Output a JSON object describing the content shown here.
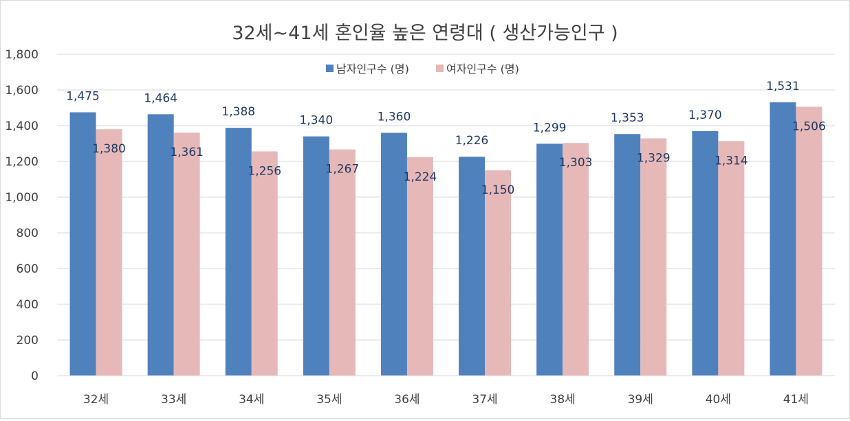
{
  "chart_data": {
    "type": "bar",
    "title": "32세~41세 혼인율 높은 연령대 ( 생산가능인구 )",
    "categories": [
      "32세",
      "33세",
      "34세",
      "35세",
      "36세",
      "37세",
      "38세",
      "39세",
      "40세",
      "41세"
    ],
    "series": [
      {
        "name": "남자인구수 (명)",
        "color": "#4f81bd",
        "values": [
          1475,
          1464,
          1388,
          1340,
          1360,
          1226,
          1299,
          1353,
          1370,
          1531
        ],
        "labels": [
          "1,475",
          "1,464",
          "1,388",
          "1,340",
          "1,360",
          "1,226",
          "1,299",
          "1,353",
          "1,370",
          "1,531"
        ]
      },
      {
        "name": "여자인구수 (명)",
        "color": "#e6b9b8",
        "values": [
          1380,
          1361,
          1256,
          1267,
          1224,
          1150,
          1303,
          1329,
          1314,
          1506
        ],
        "labels": [
          "1,380",
          "1,361",
          "1,256",
          "1,267",
          "1,224",
          "1,150",
          "1,303",
          "1,329",
          "1,314",
          "1,506"
        ]
      }
    ],
    "ylim": [
      0,
      1800
    ],
    "yticks": [
      0,
      200,
      400,
      600,
      800,
      1000,
      1200,
      1400,
      1600,
      1800
    ],
    "ytick_labels": [
      "0",
      "200",
      "400",
      "600",
      "800",
      "1,000",
      "1,200",
      "1,400",
      "1,600",
      "1,800"
    ],
    "grid": true,
    "legend_position": "top-center",
    "gridline_color": "#d9d9d9",
    "label_color": "#1f3864",
    "axis_text_color": "#404040"
  }
}
